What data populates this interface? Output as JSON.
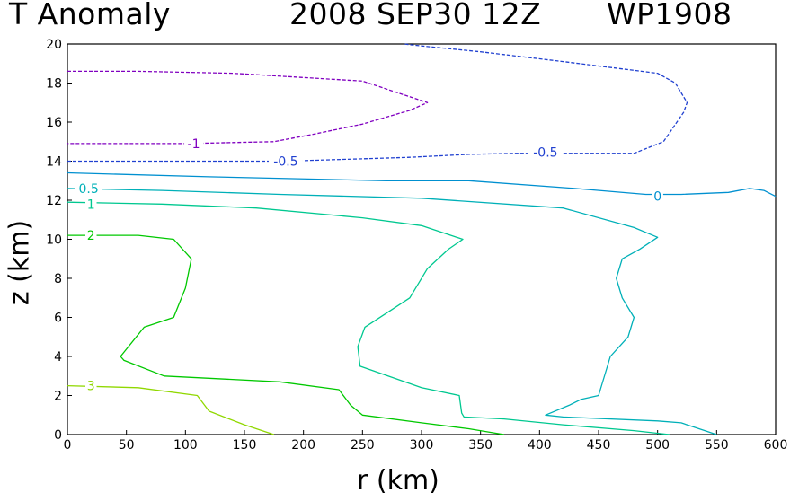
{
  "title": {
    "variable": "T Anomaly",
    "datetime": "2008 SEP30 12Z",
    "storm": "WP1908"
  },
  "chart_data": {
    "type": "contour",
    "title": "T Anomaly   2008 SEP30 12Z   WP1908",
    "xlabel": "r (km)",
    "ylabel": "z (km)",
    "xlim": [
      0,
      600
    ],
    "ylim": [
      0,
      20
    ],
    "xticks": [
      0,
      50,
      100,
      150,
      200,
      250,
      300,
      350,
      400,
      450,
      500,
      550,
      600
    ],
    "yticks": [
      0,
      2,
      4,
      6,
      8,
      10,
      12,
      14,
      16,
      18,
      20
    ],
    "grid": false,
    "contours": [
      {
        "level": -1,
        "label": "-1",
        "color": "#8000c0",
        "dashed": true,
        "label_at": [
          107,
          14.9
        ],
        "points": [
          [
            0,
            18.6
          ],
          [
            60,
            18.6
          ],
          [
            140,
            18.5
          ],
          [
            250,
            18.1
          ],
          [
            305,
            17.0
          ],
          [
            290,
            16.6
          ],
          [
            250,
            15.9
          ],
          [
            210,
            15.4
          ],
          [
            175,
            15.0
          ],
          [
            100,
            14.9
          ],
          [
            0,
            14.9
          ]
        ]
      },
      {
        "level": -0.5,
        "label": "-0.5",
        "color": "#2040d0",
        "dashed": true,
        "label_at": [
          185,
          14.0
        ],
        "points": [
          [
            0,
            14.0
          ],
          [
            185,
            14.0
          ],
          [
            290,
            14.2
          ],
          [
            340,
            14.35
          ],
          [
            380,
            14.4
          ],
          [
            480,
            14.4
          ],
          [
            505,
            15.0
          ],
          [
            522,
            16.5
          ],
          [
            525,
            17.0
          ],
          [
            515,
            18.0
          ],
          [
            500,
            18.5
          ],
          [
            420,
            19.1
          ],
          [
            350,
            19.6
          ],
          [
            300,
            19.9
          ],
          [
            285,
            20.0
          ]
        ]
      },
      {
        "level": -0.5,
        "label": "-0.5",
        "color": "#2040d0",
        "dashed": true,
        "label_at": [
          405,
          14.45
        ],
        "points": []
      },
      {
        "level": 0,
        "label": "0",
        "color": "#0090d0",
        "dashed": false,
        "label_at": [
          500,
          12.2
        ],
        "points": [
          [
            0,
            13.4
          ],
          [
            120,
            13.2
          ],
          [
            270,
            13.0
          ],
          [
            340,
            13.0
          ],
          [
            430,
            12.6
          ],
          [
            490,
            12.3
          ],
          [
            520,
            12.3
          ],
          [
            560,
            12.4
          ],
          [
            578,
            12.6
          ],
          [
            590,
            12.5
          ],
          [
            600,
            12.2
          ]
        ]
      },
      {
        "level": 0.5,
        "label": "0.5",
        "color": "#00b0b8",
        "dashed": false,
        "label_at": [
          18,
          12.6
        ],
        "points": [
          [
            0,
            12.6
          ],
          [
            80,
            12.5
          ],
          [
            180,
            12.3
          ],
          [
            300,
            12.1
          ],
          [
            420,
            11.6
          ],
          [
            480,
            10.6
          ],
          [
            500,
            10.1
          ],
          [
            485,
            9.5
          ],
          [
            470,
            9.0
          ],
          [
            465,
            8.0
          ],
          [
            470,
            7.0
          ],
          [
            480,
            6.0
          ],
          [
            475,
            5.0
          ],
          [
            460,
            4.0
          ],
          [
            450,
            2.0
          ],
          [
            435,
            1.8
          ],
          [
            425,
            1.5
          ],
          [
            405,
            1.0
          ],
          [
            420,
            0.9
          ],
          [
            500,
            0.7
          ],
          [
            520,
            0.6
          ],
          [
            540,
            0.2
          ],
          [
            550,
            0.0
          ]
        ]
      },
      {
        "level": 1,
        "label": "1",
        "color": "#00c890",
        "dashed": false,
        "label_at": [
          20,
          11.8
        ],
        "points": [
          [
            0,
            11.9
          ],
          [
            80,
            11.8
          ],
          [
            160,
            11.6
          ],
          [
            250,
            11.1
          ],
          [
            300,
            10.7
          ],
          [
            320,
            10.3
          ],
          [
            335,
            10.0
          ],
          [
            323,
            9.5
          ],
          [
            305,
            8.5
          ],
          [
            290,
            7.0
          ],
          [
            252,
            5.5
          ],
          [
            246,
            4.5
          ],
          [
            248,
            3.5
          ],
          [
            300,
            2.4
          ],
          [
            332,
            2.0
          ],
          [
            334,
            1.1
          ],
          [
            336,
            0.9
          ],
          [
            370,
            0.8
          ],
          [
            420,
            0.5
          ],
          [
            480,
            0.2
          ],
          [
            510,
            0.0
          ]
        ]
      },
      {
        "level": 2,
        "label": "2",
        "color": "#00c800",
        "dashed": false,
        "label_at": [
          20,
          10.2
        ],
        "points": [
          [
            0,
            10.2
          ],
          [
            60,
            10.2
          ],
          [
            90,
            10.0
          ],
          [
            105,
            9.0
          ],
          [
            100,
            7.5
          ],
          [
            90,
            6.0
          ],
          [
            65,
            5.5
          ],
          [
            45,
            4.0
          ],
          [
            48,
            3.8
          ],
          [
            82,
            3.0
          ],
          [
            180,
            2.7
          ],
          [
            230,
            2.3
          ],
          [
            240,
            1.5
          ],
          [
            250,
            1.0
          ],
          [
            300,
            0.6
          ],
          [
            340,
            0.3
          ],
          [
            370,
            0.0
          ]
        ]
      },
      {
        "level": 3,
        "label": "3",
        "color": "#90d800",
        "dashed": false,
        "label_at": [
          20,
          2.5
        ],
        "points": [
          [
            0,
            2.5
          ],
          [
            60,
            2.4
          ],
          [
            110,
            2.0
          ],
          [
            120,
            1.2
          ],
          [
            150,
            0.5
          ],
          [
            175,
            0.0
          ]
        ]
      }
    ]
  }
}
